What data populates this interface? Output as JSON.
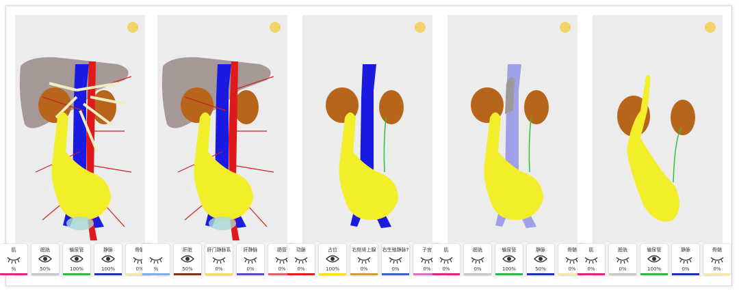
{
  "panels": [
    {
      "items": [
        {
          "label": "肌",
          "percent": "%",
          "color": "#e0287a",
          "eye": "closed"
        },
        {
          "label": "膀胱",
          "percent": "50%",
          "color": "#c8c8c8",
          "eye": "open"
        },
        {
          "label": "输尿管",
          "percent": "100%",
          "color": "#2eb84a",
          "eye": "open"
        },
        {
          "label": "静脉",
          "percent": "100%",
          "color": "#1e2fb8",
          "eye": "open"
        },
        {
          "label": "骨骼",
          "percent": "0%",
          "color": "#f3e9b0",
          "eye": "closed"
        }
      ]
    },
    {
      "items": [
        {
          "label": "",
          "percent": "%",
          "color": "#7fb0e8",
          "eye": "closed"
        },
        {
          "label": "肝脏",
          "percent": "50%",
          "color": "#7a3a1a",
          "eye": "open"
        },
        {
          "label": "肝门静脉系",
          "percent": "0%",
          "color": "#f0e060",
          "eye": "closed"
        },
        {
          "label": "肝静脉",
          "percent": "0%",
          "color": "#5a4ac8",
          "eye": "closed"
        },
        {
          "label": "肠管",
          "percent": "0%",
          "color": "#e86070",
          "eye": "closed"
        }
      ]
    },
    {
      "items": [
        {
          "label": "动脉",
          "percent": "0%",
          "color": "#e02020",
          "eye": "closed"
        },
        {
          "label": "占位",
          "percent": "100%",
          "color": "#f5e020",
          "eye": "open"
        },
        {
          "label": "右侧肾上腺",
          "percent": "0%",
          "color": "#d0a030",
          "eye": "closed"
        },
        {
          "label": "右生殖静脉?",
          "percent": "0%",
          "color": "#4060d0",
          "eye": "closed"
        },
        {
          "label": "子宫",
          "percent": "0%",
          "color": "#e070c0",
          "eye": "closed"
        }
      ]
    },
    {
      "items": [
        {
          "label": "肌",
          "percent": "0%",
          "color": "#e0287a",
          "eye": "closed"
        },
        {
          "label": "膀胱",
          "percent": "0%",
          "color": "#c8c8c8",
          "eye": "closed"
        },
        {
          "label": "输尿管",
          "percent": "100%",
          "color": "#2eb84a",
          "eye": "open"
        },
        {
          "label": "静脉",
          "percent": "50%",
          "color": "#1e2fb8",
          "eye": "open"
        },
        {
          "label": "骨骼",
          "percent": "0%",
          "color": "#f3e9b0",
          "eye": "closed"
        }
      ]
    },
    {
      "items": [
        {
          "label": "肌",
          "percent": "0%",
          "color": "#e0287a",
          "eye": "closed"
        },
        {
          "label": "膀胱",
          "percent": "0%",
          "color": "#c8c8c8",
          "eye": "closed"
        },
        {
          "label": "输尿管",
          "percent": "100%",
          "color": "#2eb84a",
          "eye": "open"
        },
        {
          "label": "静脉",
          "percent": "0%",
          "color": "#1e2fb8",
          "eye": "closed"
        },
        {
          "label": "骨骼",
          "percent": "0%",
          "color": "#f3e9b0",
          "eye": "closed"
        }
      ]
    }
  ]
}
